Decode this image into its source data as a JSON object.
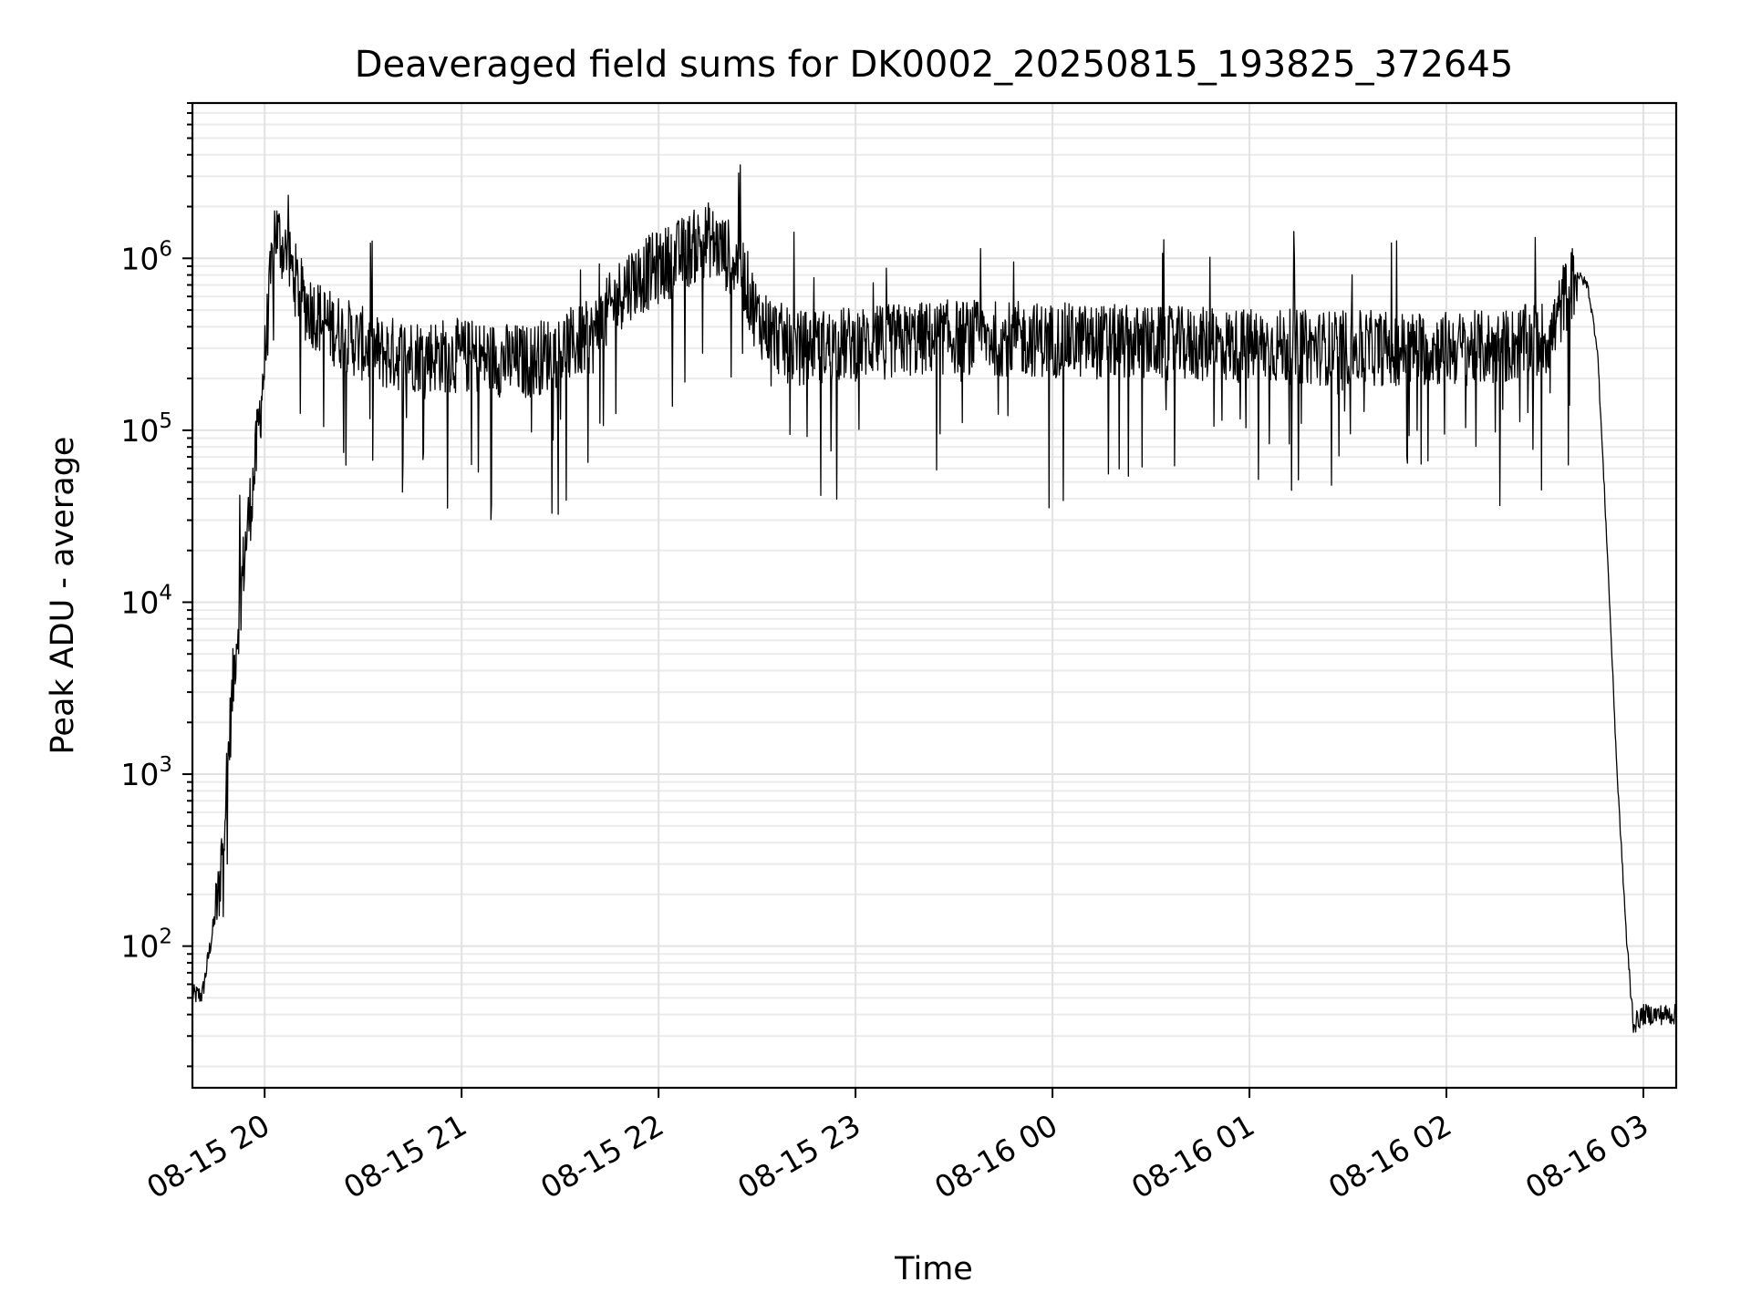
{
  "chart_data": {
    "type": "line",
    "title": "Deaveraged field sums for DK0002_20250815_193825_372645",
    "xlabel": "Time",
    "ylabel": "Peak ADU - average",
    "yscale": "log",
    "grid": true,
    "legend": "none",
    "line_color": "#000000",
    "x_tick_labels": [
      "08-15 20",
      "08-15 21",
      "08-15 22",
      "08-15 23",
      "08-16 00",
      "08-16 01",
      "08-16 02",
      "08-16 03"
    ],
    "y_tick_labels": [
      {
        "base": "10",
        "exp": "2",
        "value": 100
      },
      {
        "base": "10",
        "exp": "3",
        "value": 1000
      },
      {
        "base": "10",
        "exp": "4",
        "value": 10000
      },
      {
        "base": "10",
        "exp": "5",
        "value": 100000
      },
      {
        "base": "10",
        "exp": "6",
        "value": 1000000
      }
    ],
    "xlim": [
      "2025-08-15 19:38",
      "2025-08-16 03:10"
    ],
    "ylim": [
      15,
      8000000
    ],
    "series": [
      {
        "points": [
          [
            "2025-08-15 19:38",
            52
          ],
          [
            "2025-08-15 19:41",
            52
          ],
          [
            "2025-08-15 19:43",
            90
          ],
          [
            "2025-08-15 19:46",
            200
          ],
          [
            "2025-08-15 19:48",
            700
          ],
          [
            "2025-08-15 19:51",
            5000
          ],
          [
            "2025-08-15 19:54",
            20000
          ],
          [
            "2025-08-15 19:57",
            60000
          ],
          [
            "2025-08-15 20:00",
            250000
          ],
          [
            "2025-08-15 20:03",
            1500000
          ],
          [
            "2025-08-15 20:07",
            1000000
          ],
          [
            "2025-08-15 20:12",
            550000
          ],
          [
            "2025-08-15 20:20",
            400000
          ],
          [
            "2025-08-15 20:35",
            280000
          ],
          [
            "2025-08-15 21:00",
            270000
          ],
          [
            "2025-08-15 21:20",
            250000
          ],
          [
            "2025-08-15 21:40",
            350000
          ],
          [
            "2025-08-15 21:50",
            700000
          ],
          [
            "2025-08-15 22:05",
            1000000
          ],
          [
            "2025-08-15 22:15",
            1300000
          ],
          [
            "2025-08-15 22:25",
            900000
          ],
          [
            "2025-08-15 22:30",
            450000
          ],
          [
            "2025-08-15 22:40",
            300000
          ],
          [
            "2025-08-15 23:30",
            350000
          ],
          [
            "2025-08-16 00:30",
            320000
          ],
          [
            "2025-08-16 01:30",
            300000
          ],
          [
            "2025-08-16 02:15",
            300000
          ],
          [
            "2025-08-16 02:32",
            350000
          ],
          [
            "2025-08-16 02:36",
            600000
          ],
          [
            "2025-08-16 02:40",
            800000
          ],
          [
            "2025-08-16 02:43",
            700000
          ],
          [
            "2025-08-16 02:46",
            300000
          ],
          [
            "2025-08-16 02:49",
            20000
          ],
          [
            "2025-08-16 02:52",
            1000
          ],
          [
            "2025-08-16 02:55",
            100
          ],
          [
            "2025-08-16 02:57",
            35
          ],
          [
            "2025-08-16 03:00",
            40
          ],
          [
            "2025-08-16 03:10",
            40
          ]
        ]
      }
    ]
  }
}
